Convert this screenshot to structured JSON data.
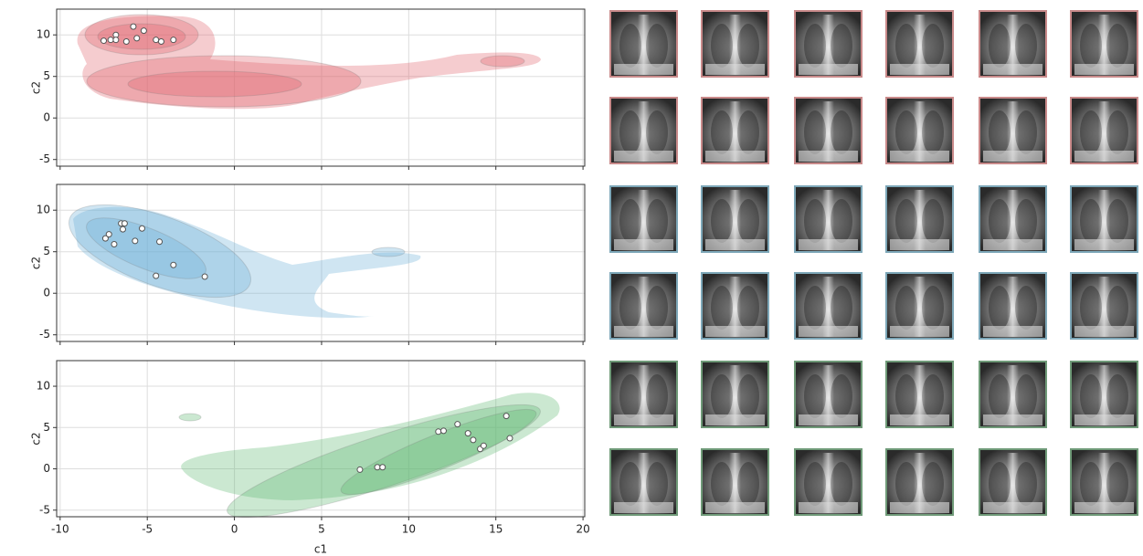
{
  "chart_data": [
    {
      "type": "scatter",
      "ylabel": "c2",
      "xlim": [
        -10.2,
        20.1
      ],
      "ylim": [
        -5.8,
        13.1
      ],
      "xticks": [
        -10,
        -5,
        0,
        5,
        10,
        15,
        20
      ],
      "yticks": [
        -5,
        0,
        5,
        10
      ],
      "grid": true,
      "series": [
        {
          "color": "#e0606a",
          "x": [
            -7.5,
            -7.1,
            -6.8,
            -6.8,
            -6.2,
            -5.8,
            -5.6,
            -5.2,
            -4.5,
            -4.2,
            -3.5
          ],
          "values": [
            9.3,
            9.4,
            10.0,
            9.4,
            9.2,
            11.0,
            9.6,
            10.5,
            9.4,
            9.2,
            9.4
          ]
        }
      ]
    },
    {
      "type": "scatter",
      "ylabel": "c2",
      "xlim": [
        -10.2,
        20.1
      ],
      "ylim": [
        -5.8,
        13.1
      ],
      "xticks": [
        -10,
        -5,
        0,
        5,
        10,
        15,
        20
      ],
      "yticks": [
        -5,
        0,
        5,
        10
      ],
      "grid": true,
      "series": [
        {
          "color": "#6aaed6",
          "x": [
            -7.4,
            -7.2,
            -6.9,
            -6.5,
            -6.3,
            -6.4,
            -5.7,
            -5.3,
            -4.3,
            -4.5,
            -3.5,
            -1.7
          ],
          "values": [
            6.6,
            7.1,
            5.9,
            8.4,
            8.4,
            7.7,
            6.3,
            7.8,
            6.2,
            2.1,
            3.4,
            2.0
          ]
        }
      ]
    },
    {
      "type": "scatter",
      "ylabel": "c2",
      "xlabel": "c1",
      "xlim": [
        -10.2,
        20.1
      ],
      "ylim": [
        -5.8,
        13.1
      ],
      "xticks": [
        -10,
        -5,
        0,
        5,
        10,
        15,
        20
      ],
      "yticks": [
        -5,
        0,
        5,
        10
      ],
      "grid": true,
      "series": [
        {
          "color": "#5cb870",
          "x": [
            7.2,
            8.2,
            8.5,
            11.7,
            12.0,
            12.8,
            13.4,
            13.7,
            14.1,
            14.3,
            15.6,
            15.8
          ],
          "values": [
            -0.1,
            0.2,
            0.2,
            4.5,
            4.6,
            5.4,
            4.3,
            3.5,
            2.4,
            2.8,
            6.4,
            3.7
          ]
        }
      ]
    }
  ]
}
